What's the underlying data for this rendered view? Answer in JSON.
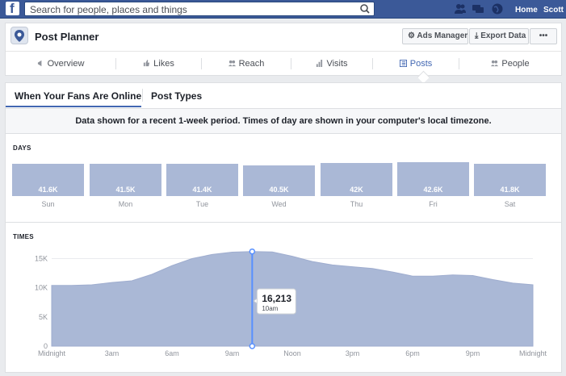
{
  "topbar": {
    "search_placeholder": "Search for people, places and things",
    "home_label": "Home",
    "user_label": "Scott",
    "logo_letter": "f"
  },
  "page": {
    "title": "Post Planner",
    "ads_manager_label": "Ads Manager",
    "export_label": "Export Data",
    "more_label": "•••"
  },
  "tabs": [
    {
      "label": "Overview",
      "icon": "megaphone-icon"
    },
    {
      "label": "Likes",
      "icon": "thumbs-up-icon"
    },
    {
      "label": "Reach",
      "icon": "people-icon"
    },
    {
      "label": "Visits",
      "icon": "bar-chart-icon"
    },
    {
      "label": "Posts",
      "icon": "posts-icon",
      "active": true
    },
    {
      "label": "People",
      "icon": "people-group-icon"
    }
  ],
  "subtabs": {
    "fans_online": "When Your Fans Are Online",
    "post_types": "Post Types"
  },
  "notice": "Data shown for a recent 1-week period. Times of day are shown in your computer's local timezone.",
  "days_section": {
    "label": "DAYS",
    "days": [
      {
        "name": "Sun",
        "value": "41.6K"
      },
      {
        "name": "Mon",
        "value": "41.5K"
      },
      {
        "name": "Tue",
        "value": "41.4K"
      },
      {
        "name": "Wed",
        "value": "40.5K"
      },
      {
        "name": "Thu",
        "value": "42K"
      },
      {
        "name": "Fri",
        "value": "42.6K"
      },
      {
        "name": "Sat",
        "value": "41.8K"
      }
    ]
  },
  "times_section": {
    "label": "TIMES"
  },
  "colors": {
    "brand": "#3b5998",
    "accent": "#4267b2",
    "area_fill": "#aab8d6",
    "marker": "#5890ff"
  },
  "chart_data": {
    "type": "area",
    "x": [
      "Midnight",
      "1am",
      "2am",
      "3am",
      "4am",
      "5am",
      "6am",
      "7am",
      "8am",
      "9am",
      "10am",
      "11am",
      "Noon",
      "1pm",
      "2pm",
      "3pm",
      "4pm",
      "5pm",
      "6pm",
      "7pm",
      "8pm",
      "9pm",
      "10pm",
      "11pm",
      "Midnight"
    ],
    "xticks": [
      "Midnight",
      "3am",
      "6am",
      "9am",
      "Noon",
      "3pm",
      "6pm",
      "9pm",
      "Midnight"
    ],
    "values": [
      10400,
      10400,
      10500,
      10900,
      11200,
      12300,
      13800,
      15000,
      15700,
      16100,
      16213,
      16150,
      15400,
      14500,
      13900,
      13600,
      13300,
      12700,
      12000,
      12000,
      12200,
      12100,
      11400,
      10800,
      10500
    ],
    "yticks": [
      "0",
      "5K",
      "10K",
      "15K"
    ],
    "ylim": [
      0,
      17000
    ],
    "highlight": {
      "label": "10am",
      "value": "16,213",
      "index": 10
    },
    "title": "",
    "xlabel": "",
    "ylabel": ""
  }
}
